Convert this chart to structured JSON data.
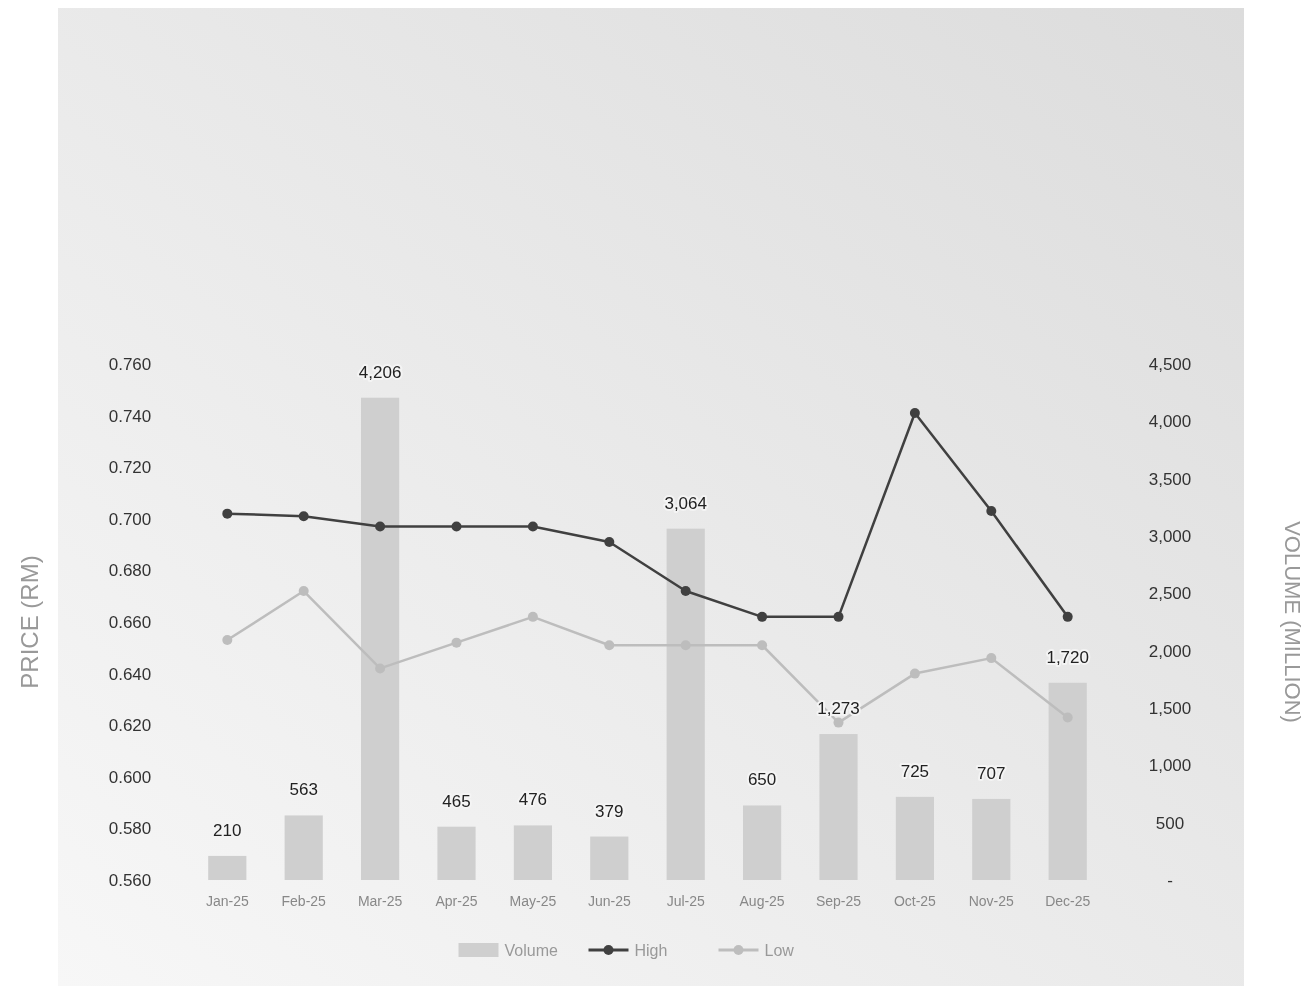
{
  "chart_data": {
    "type": "bar",
    "ylabel": "PRICE (RM)",
    "y2label": "VOLUME (MILLION)",
    "categories": [
      "Jan-25",
      "Feb-25",
      "Mar-25",
      "Apr-25",
      "May-25",
      "Jun-25",
      "Jul-25",
      "Aug-25",
      "Sep-25",
      "Oct-25",
      "Nov-25",
      "Dec-25"
    ],
    "series": [
      {
        "name": "Volume",
        "axis": "y2",
        "color": "#cfcfcf",
        "values": [
          210,
          563,
          4206,
          465,
          476,
          379,
          3064,
          650,
          1273,
          725,
          707,
          1720
        ],
        "value_labels": [
          "210",
          "563",
          "4,206",
          "465",
          "476",
          "379",
          "3,064",
          "650",
          "1,273",
          "725",
          "707",
          "1,720"
        ]
      },
      {
        "name": "High",
        "type": "line",
        "color": "#404040",
        "values": [
          0.702,
          0.701,
          0.697,
          0.697,
          0.697,
          0.691,
          0.672,
          0.662,
          0.662,
          0.741,
          0.703,
          0.662
        ]
      },
      {
        "name": "Low",
        "type": "line",
        "color": "#bdbdbd",
        "values": [
          0.653,
          0.672,
          0.642,
          0.652,
          0.662,
          0.651,
          0.651,
          0.651,
          0.621,
          0.64,
          0.646,
          0.623
        ]
      }
    ],
    "ylim": [
      0.56,
      0.76
    ],
    "yticks": [
      {
        "value": 0.56,
        "label": "0.560"
      },
      {
        "value": 0.58,
        "label": "0.580"
      },
      {
        "value": 0.6,
        "label": "0.600"
      },
      {
        "value": 0.62,
        "label": "0.620"
      },
      {
        "value": 0.64,
        "label": "0.640"
      },
      {
        "value": 0.66,
        "label": "0.660"
      },
      {
        "value": 0.68,
        "label": "0.680"
      },
      {
        "value": 0.7,
        "label": "0.700"
      },
      {
        "value": 0.72,
        "label": "0.720"
      },
      {
        "value": 0.74,
        "label": "0.740"
      },
      {
        "value": 0.76,
        "label": "0.760"
      }
    ],
    "y2lim": [
      0,
      4500
    ],
    "y2ticks": [
      {
        "value": 0,
        "label": "-"
      },
      500,
      {
        "value": 1000,
        "label": "1,000"
      },
      {
        "value": 1500,
        "label": "1,500"
      },
      {
        "value": 2000,
        "label": "2,000"
      },
      {
        "value": 2500,
        "label": "2,500"
      },
      {
        "value": 3000,
        "label": "3,000"
      },
      {
        "value": 3500,
        "label": "3,500"
      },
      {
        "value": 4000,
        "label": "4,000"
      },
      {
        "value": 4500,
        "label": "4,500"
      }
    ],
    "grid": false,
    "legend": "bottom",
    "marker": "circle",
    "line_style": "solid"
  }
}
